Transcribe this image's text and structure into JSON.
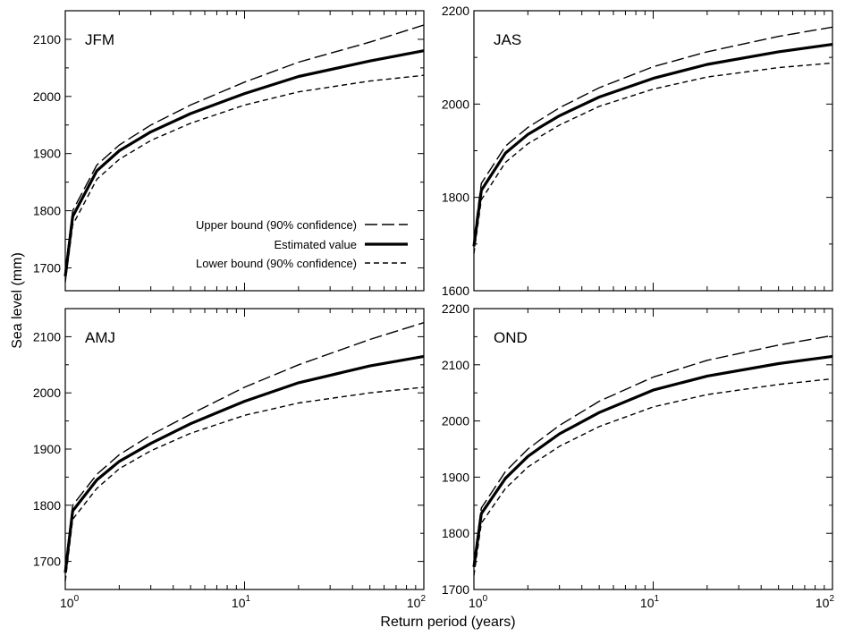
{
  "figure": {
    "xlabel": "Return period (years)",
    "ylabel": "Sea level (mm)"
  },
  "legend": [
    {
      "label": "Upper bound (90% confidence)",
      "style": "long-dash"
    },
    {
      "label": "Estimated value",
      "style": "solid-thick"
    },
    {
      "label": "Lower bound (90% confidence)",
      "style": "short-dash"
    }
  ],
  "chart_data": [
    {
      "type": "line",
      "panel": "JFM",
      "xscale": "log",
      "xlim": [
        1,
        100
      ],
      "ylim": [
        1660,
        2150
      ],
      "xticks": [
        1,
        10,
        100
      ],
      "xtick_labels": [
        {
          "base": "10",
          "exp": "0"
        },
        {
          "base": "10",
          "exp": "1"
        },
        {
          "base": "10",
          "exp": "2"
        }
      ],
      "yticks": [
        1700,
        1800,
        1900,
        2000,
        2100
      ],
      "x": [
        1.0,
        1.1,
        1.5,
        2,
        3,
        5,
        10,
        20,
        50,
        100
      ],
      "series": [
        {
          "name": "Upper bound (90% confidence)",
          "values": [
            1695,
            1800,
            1880,
            1915,
            1950,
            1985,
            2025,
            2060,
            2095,
            2125
          ]
        },
        {
          "name": "Estimated value",
          "values": [
            1685,
            1790,
            1870,
            1905,
            1938,
            1970,
            2005,
            2035,
            2062,
            2080
          ]
        },
        {
          "name": "Lower bound (90% confidence)",
          "values": [
            1675,
            1775,
            1855,
            1890,
            1923,
            1953,
            1985,
            2008,
            2027,
            2037
          ]
        }
      ]
    },
    {
      "type": "line",
      "panel": "JAS",
      "xscale": "log",
      "xlim": [
        1,
        100
      ],
      "ylim": [
        1600,
        2200
      ],
      "xticks": [
        1,
        10,
        100
      ],
      "xtick_labels": [
        {
          "base": "10",
          "exp": "0"
        },
        {
          "base": "10",
          "exp": "1"
        },
        {
          "base": "10",
          "exp": "2"
        }
      ],
      "yticks": [
        1600,
        1800,
        2000,
        2200
      ],
      "x": [
        1.0,
        1.1,
        1.5,
        2,
        3,
        5,
        10,
        20,
        50,
        100
      ],
      "series": [
        {
          "name": "Upper bound (90% confidence)",
          "values": [
            1710,
            1830,
            1910,
            1950,
            1992,
            2035,
            2080,
            2112,
            2145,
            2165
          ]
        },
        {
          "name": "Estimated value",
          "values": [
            1695,
            1815,
            1895,
            1935,
            1975,
            2015,
            2055,
            2085,
            2112,
            2128
          ]
        },
        {
          "name": "Lower bound (90% confidence)",
          "values": [
            1680,
            1795,
            1875,
            1915,
            1955,
            1995,
            2032,
            2058,
            2078,
            2088
          ]
        }
      ]
    },
    {
      "type": "line",
      "panel": "AMJ",
      "xscale": "log",
      "xlim": [
        1,
        100
      ],
      "ylim": [
        1650,
        2150
      ],
      "xticks": [
        1,
        10,
        100
      ],
      "xtick_labels": [
        {
          "base": "10",
          "exp": "0"
        },
        {
          "base": "10",
          "exp": "1"
        },
        {
          "base": "10",
          "exp": "2"
        }
      ],
      "yticks": [
        1700,
        1800,
        1900,
        2000,
        2100
      ],
      "x": [
        1.0,
        1.1,
        1.5,
        2,
        3,
        5,
        10,
        20,
        50,
        100
      ],
      "series": [
        {
          "name": "Upper bound (90% confidence)",
          "values": [
            1690,
            1800,
            1855,
            1890,
            1925,
            1962,
            2010,
            2050,
            2095,
            2125
          ]
        },
        {
          "name": "Estimated value",
          "values": [
            1680,
            1790,
            1845,
            1878,
            1910,
            1945,
            1985,
            2018,
            2048,
            2065
          ]
        },
        {
          "name": "Lower bound (90% confidence)",
          "values": [
            1665,
            1775,
            1830,
            1865,
            1897,
            1928,
            1960,
            1982,
            2000,
            2010
          ]
        }
      ]
    },
    {
      "type": "line",
      "panel": "OND",
      "xscale": "log",
      "xlim": [
        1,
        100
      ],
      "ylim": [
        1700,
        2200
      ],
      "xticks": [
        1,
        10,
        100
      ],
      "xtick_labels": [
        {
          "base": "10",
          "exp": "0"
        },
        {
          "base": "10",
          "exp": "1"
        },
        {
          "base": "10",
          "exp": "2"
        }
      ],
      "yticks": [
        1700,
        1800,
        1900,
        2000,
        2100,
        2200
      ],
      "x": [
        1.0,
        1.1,
        1.5,
        2,
        3,
        5,
        10,
        20,
        50,
        100
      ],
      "series": [
        {
          "name": "Upper bound (90% confidence)",
          "values": [
            1750,
            1845,
            1910,
            1950,
            1992,
            2035,
            2078,
            2108,
            2135,
            2152
          ]
        },
        {
          "name": "Estimated value",
          "values": [
            1740,
            1835,
            1898,
            1937,
            1977,
            2015,
            2055,
            2080,
            2102,
            2115
          ]
        },
        {
          "name": "Lower bound (90% confidence)",
          "values": [
            1725,
            1818,
            1880,
            1918,
            1955,
            1990,
            2025,
            2047,
            2065,
            2075
          ]
        }
      ]
    }
  ]
}
